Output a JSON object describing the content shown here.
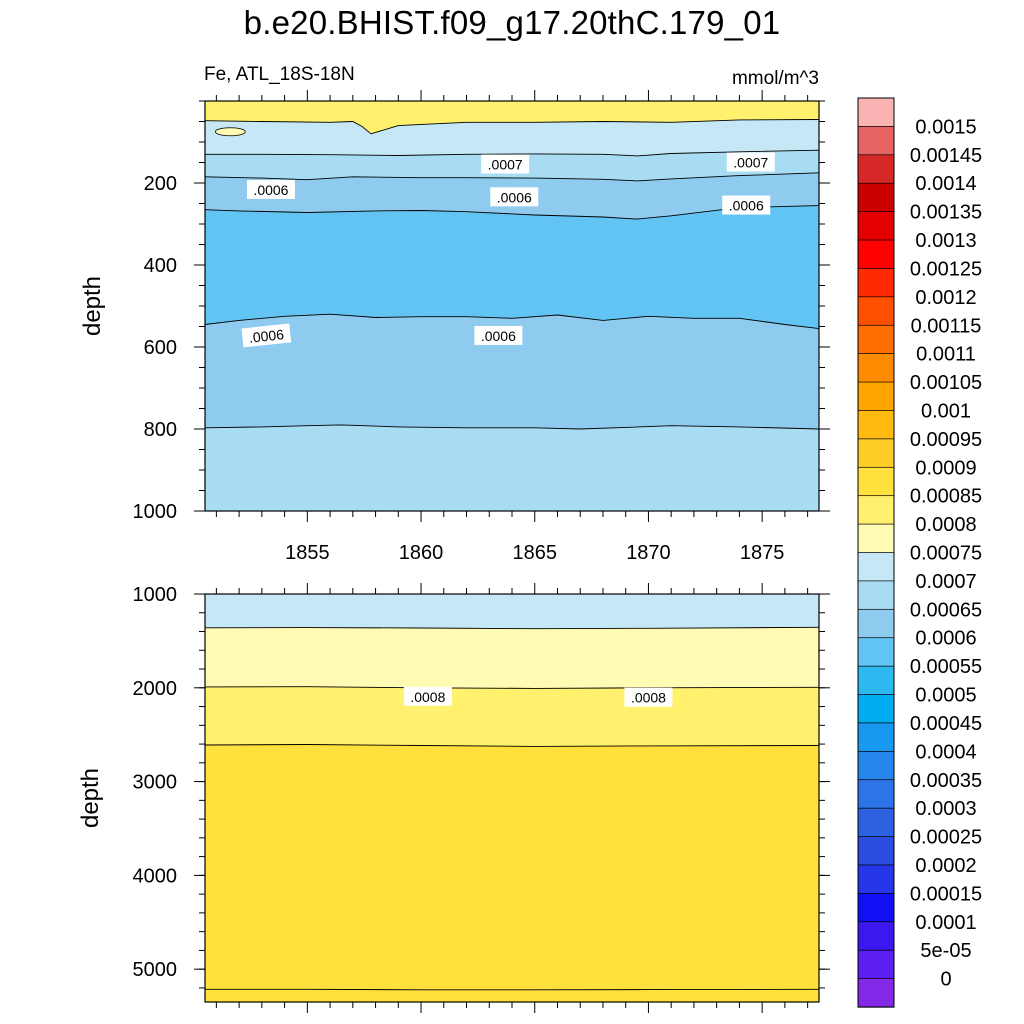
{
  "chart_data": {
    "type": "contour",
    "title": "b.e20.BHIST.f09_g17.20thC.179_01",
    "variable": "Fe, ATL_18S-18N",
    "units": "mmol/m^3",
    "xlabel": "",
    "ylabel": "depth",
    "xlim": [
      1850.5,
      1877.5
    ],
    "x_ticks": [
      "1855",
      "1860",
      "1865",
      "1870",
      "1875"
    ],
    "x_tick_values": [
      1855,
      1860,
      1865,
      1870,
      1875
    ],
    "panels": [
      {
        "name": "upper",
        "ylim": [
          0,
          1000
        ],
        "y_tick_values": [
          200,
          400,
          600,
          800,
          1000
        ],
        "y_ticks": [
          "200",
          "400",
          "600",
          "800",
          "1000"
        ],
        "y_minor_step": 50,
        "top_fill_level": 0.0008,
        "contours": [
          {
            "level": 0.00075,
            "below_level": 0.0007,
            "x": [
              1850.5,
              1853,
              1856,
              1857,
              1857.4,
              1857.8,
              1859,
              1862,
              1865,
              1868,
              1871,
              1874,
              1877.5
            ],
            "y": [
              48,
              50,
              52,
              50,
              62,
              80,
              60,
              52,
              52,
              50,
              52,
              46,
              45
            ]
          },
          {
            "level": 0.0007,
            "below_level": 0.00065,
            "x": [
              1850.5,
              1853,
              1856,
              1859,
              1862,
              1865,
              1868,
              1869.5,
              1871,
              1874,
              1877.5
            ],
            "y": [
              130,
              130,
              131,
              133,
              130,
              129,
              130,
              134,
              128,
              124,
              120
            ]
          },
          {
            "level": 0.00065,
            "below_level": 0.0006,
            "x": [
              1850.5,
              1853,
              1855,
              1857,
              1860,
              1862,
              1865,
              1868,
              1869.5,
              1871,
              1874,
              1877.5
            ],
            "y": [
              185,
              188,
              192,
              185,
              187,
              187,
              188,
              191,
              195,
              190,
              182,
              175
            ]
          },
          {
            "level": 0.0006,
            "below_level": 0.00055,
            "x": [
              1850.5,
              1852,
              1855,
              1858,
              1860,
              1862,
              1865,
              1868,
              1869.5,
              1871,
              1874,
              1877.5
            ],
            "y": [
              265,
              268,
              272,
              268,
              267,
              270,
              278,
              283,
              288,
              280,
              260,
              255
            ]
          },
          {
            "level": 0.0006,
            "below_level": 0.0006,
            "x": [
              1850.5,
              1852,
              1854,
              1856,
              1858,
              1860,
              1862,
              1864,
              1866,
              1868,
              1870,
              1872,
              1874,
              1876,
              1877.5
            ],
            "y": [
              545,
              535,
              525,
              520,
              528,
              526,
              526,
              530,
              522,
              535,
              525,
              530,
              530,
              545,
              555
            ]
          },
          {
            "level": 0.00065,
            "below_level": 0.00065,
            "x": [
              1850.5,
              1853,
              1855,
              1856.5,
              1859,
              1862,
              1865,
              1867,
              1869,
              1871,
              1874,
              1877.5
            ],
            "y": [
              797,
              795,
              792,
              790,
              795,
              797,
              797,
              800,
              796,
              792,
              795,
              800
            ]
          }
        ],
        "spots": [
          {
            "x": 1851,
            "y": 75,
            "level": 0.00075
          }
        ],
        "contour_labels": [
          {
            "text": ".0007",
            "x": 1863.7,
            "y": 155,
            "angle": 0
          },
          {
            "text": ".0007",
            "x": 1874.5,
            "y": 150,
            "angle": 0
          },
          {
            "text": ".0006",
            "x": 1853.4,
            "y": 217,
            "angle": 0
          },
          {
            "text": ".0006",
            "x": 1864.1,
            "y": 235,
            "angle": 0
          },
          {
            "text": ".0006",
            "x": 1874.3,
            "y": 255,
            "angle": 0
          },
          {
            "text": ".0006",
            "x": 1853.2,
            "y": 573,
            "angle": -6
          },
          {
            "text": ".0006",
            "x": 1863.4,
            "y": 573,
            "angle": 0
          }
        ],
        "bottom_fill_level": 0.0007
      },
      {
        "name": "lower",
        "ylim": [
          1000,
          5350
        ],
        "y_tick_values": [
          1000,
          2000,
          3000,
          4000,
          5000
        ],
        "y_ticks": [
          "1000",
          "2000",
          "3000",
          "4000",
          "5000"
        ],
        "y_minor_step": 200,
        "top_fill_level": 0.0007,
        "contours": [
          {
            "level": 0.0007,
            "below_level": 0.00075,
            "x": [
              1850.5,
              1855,
              1860,
              1865,
              1870,
              1877.5
            ],
            "y": [
              1360,
              1358,
              1362,
              1370,
              1366,
              1355
            ]
          },
          {
            "level": 0.0008,
            "below_level": 0.0008,
            "x": [
              1850.5,
              1855,
              1860,
              1865,
              1870,
              1877.5
            ],
            "y": [
              1990,
              1988,
              2000,
              2006,
              2000,
              1995
            ]
          },
          {
            "level": 0.00085,
            "below_level": 0.00085,
            "x": [
              1850.5,
              1855,
              1860,
              1865,
              1870,
              1877.5
            ],
            "y": [
              2610,
              2605,
              2615,
              2625,
              2620,
              2615
            ]
          },
          {
            "level": 0.00085,
            "below_level": 0.00085,
            "x": [
              1850.5,
              1855,
              1860,
              1865,
              1870,
              1877.5
            ],
            "y": [
              5215,
              5215,
              5220,
              5220,
              5218,
              5215
            ]
          }
        ],
        "spots": [],
        "contour_labels": [
          {
            "text": ".0008",
            "x": 1860.3,
            "y": 2096,
            "angle": 0
          },
          {
            "text": ".0008",
            "x": 1870.0,
            "y": 2106,
            "angle": 0
          }
        ]
      }
    ],
    "colorbar": {
      "levels": [
        "0.0015",
        "0.00145",
        "0.0014",
        "0.00135",
        "0.0013",
        "0.00125",
        "0.0012",
        "0.00115",
        "0.0011",
        "0.00105",
        "0.001",
        "0.00095",
        "0.0009",
        "0.00085",
        "0.0008",
        "0.00075",
        "0.0007",
        "0.00065",
        "0.0006",
        "0.00055",
        "0.0005",
        "0.00045",
        "0.0004",
        "0.00035",
        "0.0003",
        "0.00025",
        "0.0002",
        "0.00015",
        "0.0001",
        "5e-05",
        "0"
      ],
      "colors": [
        "#fbb4b4",
        "#e86464",
        "#d72828",
        "#cd0000",
        "#e50000",
        "#ff0000",
        "#ff2a00",
        "#ff5000",
        "#ff6e00",
        "#ff8c00",
        "#ffa500",
        "#ffb90f",
        "#ffcc28",
        "#ffe03c",
        "#fff06e",
        "#fffab4",
        "#c6e8f6",
        "#a8dcf2",
        "#8ecbee",
        "#62c4f2",
        "#2eb8f0",
        "#00acf0",
        "#1898f0",
        "#2686ec",
        "#2c74e8",
        "#2c62e0",
        "#2c4ee0",
        "#2436e8",
        "#1010f4",
        "#3c18f0",
        "#5a1ef0",
        "#8228e6"
      ]
    }
  },
  "colors": {
    "0.0008": "#fff06e",
    "0.00085": "#ffe03c",
    "0.00075": "#fffab4",
    "0.0007": "#c6e8f6",
    "0.00065": "#a8dcf2",
    "0.0006": "#8ecbee",
    "0.00055": "#62c4f2"
  }
}
